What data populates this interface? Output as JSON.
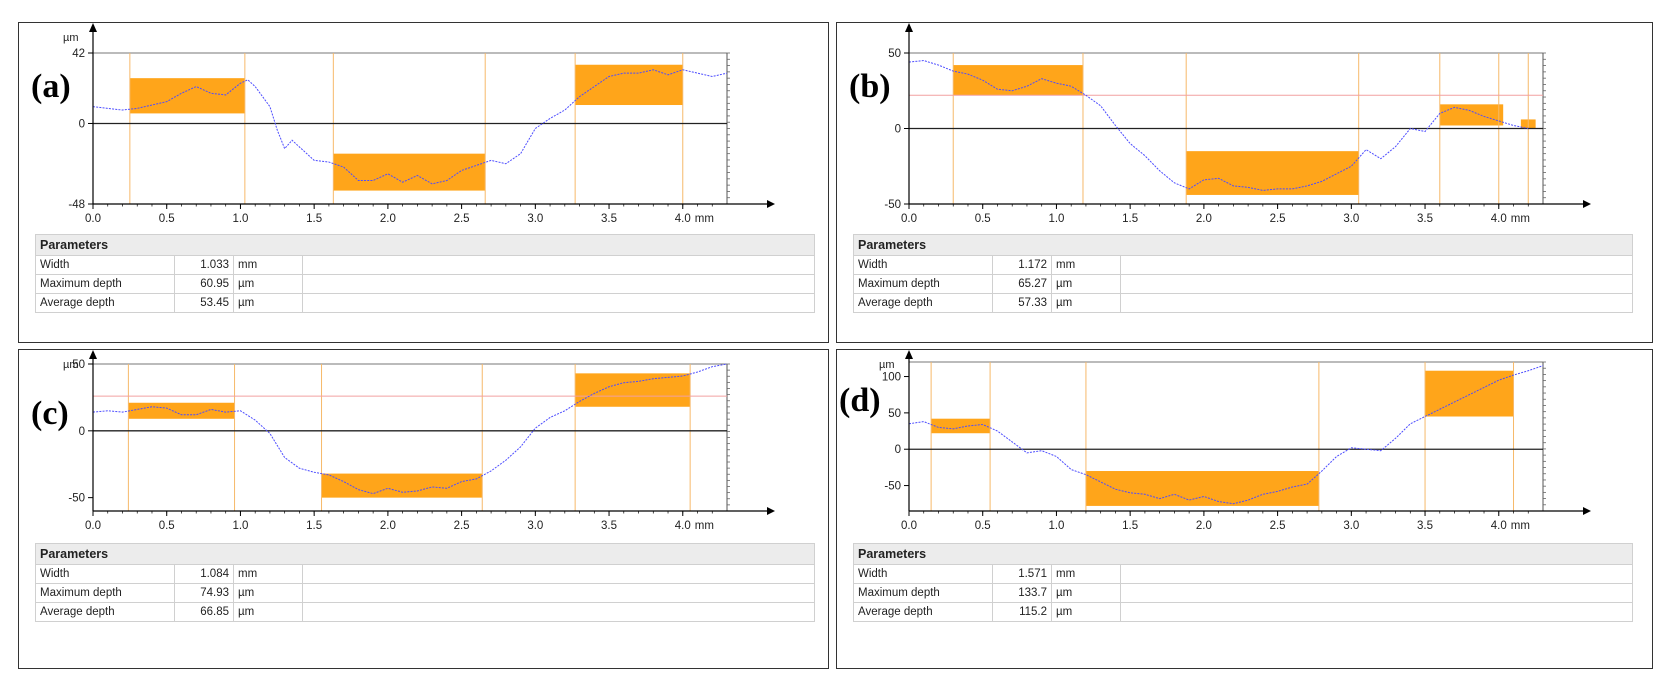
{
  "chart_data": [
    {
      "id": "a",
      "type": "line",
      "label": "(a)",
      "y_unit": "µm",
      "x_unit": "mm",
      "ylim": [
        -48,
        42
      ],
      "xlim": [
        0,
        4.3
      ],
      "y_ticks": [
        42,
        0,
        -48
      ],
      "x_ticks": [
        "0.0",
        "0.5",
        "1.0",
        "1.5",
        "2.0",
        "2.5",
        "3.0",
        "3.5",
        "4.0"
      ],
      "markers": [
        0.25,
        1.03,
        1.63,
        2.66,
        3.27,
        4.0
      ],
      "highlights": [
        {
          "x0": 0.25,
          "x1": 1.03,
          "y0": 6,
          "y1": 27
        },
        {
          "x0": 1.63,
          "x1": 2.66,
          "y0": -40,
          "y1": -18
        },
        {
          "x0": 3.27,
          "x1": 4.0,
          "y0": 11,
          "y1": 35
        }
      ],
      "profile": {
        "x": [
          0,
          0.1,
          0.2,
          0.3,
          0.4,
          0.5,
          0.6,
          0.7,
          0.8,
          0.9,
          1.0,
          1.05,
          1.1,
          1.2,
          1.25,
          1.3,
          1.35,
          1.4,
          1.5,
          1.6,
          1.7,
          1.8,
          1.9,
          2.0,
          2.1,
          2.2,
          2.3,
          2.4,
          2.5,
          2.6,
          2.7,
          2.8,
          2.9,
          3.0,
          3.1,
          3.2,
          3.3,
          3.4,
          3.5,
          3.6,
          3.7,
          3.8,
          3.9,
          4.0,
          4.1,
          4.2,
          4.3
        ],
        "y": [
          10,
          9,
          8,
          9,
          11,
          13,
          18,
          22,
          18,
          17,
          24,
          26,
          22,
          10,
          -4,
          -15,
          -10,
          -14,
          -22,
          -23,
          -26,
          -34,
          -34,
          -30,
          -35,
          -31,
          -36,
          -34,
          -28,
          -25,
          -22,
          -24,
          -18,
          -3,
          3,
          8,
          16,
          22,
          28,
          30,
          30,
          32,
          29,
          32,
          30,
          28,
          30
        ]
      },
      "parameters": {
        "title": "Parameters",
        "rows": [
          {
            "name": "Width",
            "value": "1.033",
            "unit": "mm"
          },
          {
            "name": "Maximum depth",
            "value": "60.95",
            "unit": "µm"
          },
          {
            "name": "Average depth",
            "value": "53.45",
            "unit": "µm"
          }
        ]
      }
    },
    {
      "id": "b",
      "type": "line",
      "label": "(b)",
      "y_unit": "",
      "x_unit": "mm",
      "ylim": [
        -50,
        50
      ],
      "xlim": [
        0,
        4.3
      ],
      "y_ticks": [
        50,
        0,
        -50
      ],
      "x_ticks": [
        "0.0",
        "0.5",
        "1.0",
        "1.5",
        "2.0",
        "2.5",
        "3.0",
        "3.5",
        "4.0"
      ],
      "markers": [
        0.3,
        1.18,
        1.88,
        3.05,
        3.6,
        4.0,
        4.2
      ],
      "ref_line": 22,
      "highlights": [
        {
          "x0": 0.3,
          "x1": 1.18,
          "y0": 22,
          "y1": 42
        },
        {
          "x0": 1.88,
          "x1": 3.05,
          "y0": -44,
          "y1": -15
        },
        {
          "x0": 3.6,
          "x1": 4.03,
          "y0": 2,
          "y1": 16
        },
        {
          "x0": 4.15,
          "x1": 4.25,
          "y0": 0,
          "y1": 6
        }
      ],
      "profile": {
        "x": [
          0,
          0.1,
          0.2,
          0.3,
          0.4,
          0.5,
          0.6,
          0.7,
          0.8,
          0.9,
          1.0,
          1.1,
          1.2,
          1.3,
          1.4,
          1.5,
          1.6,
          1.7,
          1.8,
          1.9,
          2.0,
          2.1,
          2.2,
          2.3,
          2.4,
          2.5,
          2.6,
          2.7,
          2.8,
          2.9,
          3.0,
          3.1,
          3.2,
          3.3,
          3.4,
          3.5,
          3.6,
          3.7,
          3.8,
          3.9,
          4.0,
          4.1,
          4.2
        ],
        "y": [
          44,
          45,
          42,
          38,
          36,
          32,
          26,
          25,
          28,
          33,
          30,
          28,
          22,
          15,
          2,
          -10,
          -18,
          -28,
          -36,
          -40,
          -34,
          -33,
          -38,
          -39,
          -41,
          -40,
          -40,
          -38,
          -35,
          -30,
          -25,
          -14,
          -20,
          -12,
          0,
          -2,
          10,
          14,
          12,
          8,
          5,
          2,
          0
        ]
      },
      "parameters": {
        "title": "Parameters",
        "rows": [
          {
            "name": "Width",
            "value": "1.172",
            "unit": "mm"
          },
          {
            "name": "Maximum depth",
            "value": "65.27",
            "unit": "µm"
          },
          {
            "name": "Average depth",
            "value": "57.33",
            "unit": "µm"
          }
        ]
      }
    },
    {
      "id": "c",
      "type": "line",
      "label": "(c)",
      "y_unit": "µm",
      "x_unit": "mm",
      "ylim": [
        -60,
        50
      ],
      "xlim": [
        0,
        4.3
      ],
      "y_ticks": [
        50,
        0,
        -50
      ],
      "x_ticks": [
        "0.0",
        "0.5",
        "1.0",
        "1.5",
        "2.0",
        "2.5",
        "3.0",
        "3.5",
        "4.0"
      ],
      "markers": [
        0.24,
        0.96,
        1.55,
        2.64,
        3.27,
        4.05
      ],
      "ref_line": 26,
      "highlights": [
        {
          "x0": 0.24,
          "x1": 0.96,
          "y0": 9,
          "y1": 21
        },
        {
          "x0": 1.55,
          "x1": 2.64,
          "y0": -50,
          "y1": -32
        },
        {
          "x0": 3.27,
          "x1": 4.05,
          "y0": 18,
          "y1": 43
        }
      ],
      "profile": {
        "x": [
          0,
          0.1,
          0.2,
          0.3,
          0.4,
          0.5,
          0.6,
          0.7,
          0.8,
          0.9,
          1.0,
          1.1,
          1.2,
          1.3,
          1.4,
          1.5,
          1.6,
          1.7,
          1.8,
          1.9,
          2.0,
          2.1,
          2.2,
          2.3,
          2.4,
          2.5,
          2.6,
          2.7,
          2.8,
          2.9,
          3.0,
          3.1,
          3.2,
          3.3,
          3.4,
          3.5,
          3.6,
          3.7,
          3.8,
          3.9,
          4.0,
          4.1,
          4.2,
          4.3
        ],
        "y": [
          14,
          15,
          14,
          16,
          18,
          17,
          12,
          12,
          16,
          14,
          15,
          8,
          -2,
          -20,
          -28,
          -31,
          -33,
          -38,
          -44,
          -47,
          -43,
          -46,
          -45,
          -42,
          -43,
          -38,
          -36,
          -30,
          -22,
          -12,
          2,
          10,
          15,
          22,
          28,
          33,
          36,
          37,
          39,
          40,
          41,
          44,
          48,
          50
        ]
      },
      "parameters": {
        "title": "Parameters",
        "rows": [
          {
            "name": "Width",
            "value": "1.084",
            "unit": "mm"
          },
          {
            "name": "Maximum depth",
            "value": "74.93",
            "unit": "µm"
          },
          {
            "name": "Average depth",
            "value": "66.85",
            "unit": "µm"
          }
        ]
      }
    },
    {
      "id": "d",
      "type": "line",
      "label": "(d)",
      "y_unit": "µm",
      "x_unit": "mm",
      "ylim": [
        -85,
        120
      ],
      "xlim": [
        0,
        4.3
      ],
      "y_ticks": [
        100,
        50,
        0,
        -50
      ],
      "x_ticks": [
        "0.0",
        "0.5",
        "1.0",
        "1.5",
        "2.0",
        "2.5",
        "3.0",
        "3.5",
        "4.0"
      ],
      "markers": [
        0.15,
        0.55,
        1.2,
        2.78,
        3.5,
        4.1
      ],
      "highlights": [
        {
          "x0": 0.15,
          "x1": 0.55,
          "y0": 22,
          "y1": 42
        },
        {
          "x0": 1.2,
          "x1": 2.78,
          "y0": -78,
          "y1": -30
        },
        {
          "x0": 3.5,
          "x1": 4.1,
          "y0": 45,
          "y1": 108
        }
      ],
      "profile": {
        "x": [
          0,
          0.1,
          0.2,
          0.3,
          0.4,
          0.5,
          0.6,
          0.7,
          0.8,
          0.9,
          1.0,
          1.1,
          1.2,
          1.3,
          1.4,
          1.5,
          1.6,
          1.7,
          1.8,
          1.9,
          2.0,
          2.1,
          2.2,
          2.3,
          2.4,
          2.5,
          2.6,
          2.7,
          2.8,
          2.9,
          3.0,
          3.1,
          3.2,
          3.3,
          3.4,
          3.5,
          3.6,
          3.7,
          3.8,
          3.9,
          4.0,
          4.1,
          4.2,
          4.3
        ],
        "y": [
          35,
          38,
          30,
          28,
          32,
          34,
          25,
          10,
          -5,
          -2,
          -10,
          -28,
          -35,
          -45,
          -55,
          -60,
          -62,
          -68,
          -62,
          -70,
          -65,
          -72,
          -75,
          -70,
          -62,
          -58,
          -52,
          -48,
          -30,
          -10,
          2,
          0,
          -2,
          15,
          35,
          45,
          55,
          65,
          75,
          85,
          95,
          102,
          108,
          115
        ]
      },
      "parameters": {
        "title": "Parameters",
        "rows": [
          {
            "name": "Width",
            "value": "1.571",
            "unit": "mm"
          },
          {
            "name": "Maximum depth",
            "value": "133.7",
            "unit": "µm"
          },
          {
            "name": "Average depth",
            "value": "115.2",
            "unit": "µm"
          }
        ]
      }
    }
  ]
}
